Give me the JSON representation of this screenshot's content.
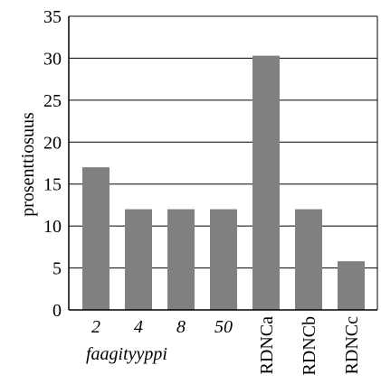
{
  "chart_data": {
    "type": "bar",
    "categories": [
      "2",
      "4",
      "8",
      "50",
      "RDNCa",
      "RDNCb",
      "RDNCc"
    ],
    "values": [
      17,
      12,
      12,
      12,
      30.3,
      12,
      5.8
    ],
    "ylabel": "prosenttiosuus",
    "xlabel": "faagityyppi",
    "ylim": [
      0,
      35
    ],
    "yticks": [
      0,
      5,
      10,
      15,
      20,
      25,
      30,
      35
    ],
    "grid": true,
    "colors": {
      "bar": "#808080",
      "grid": "#000000",
      "axis": "#000000"
    }
  }
}
